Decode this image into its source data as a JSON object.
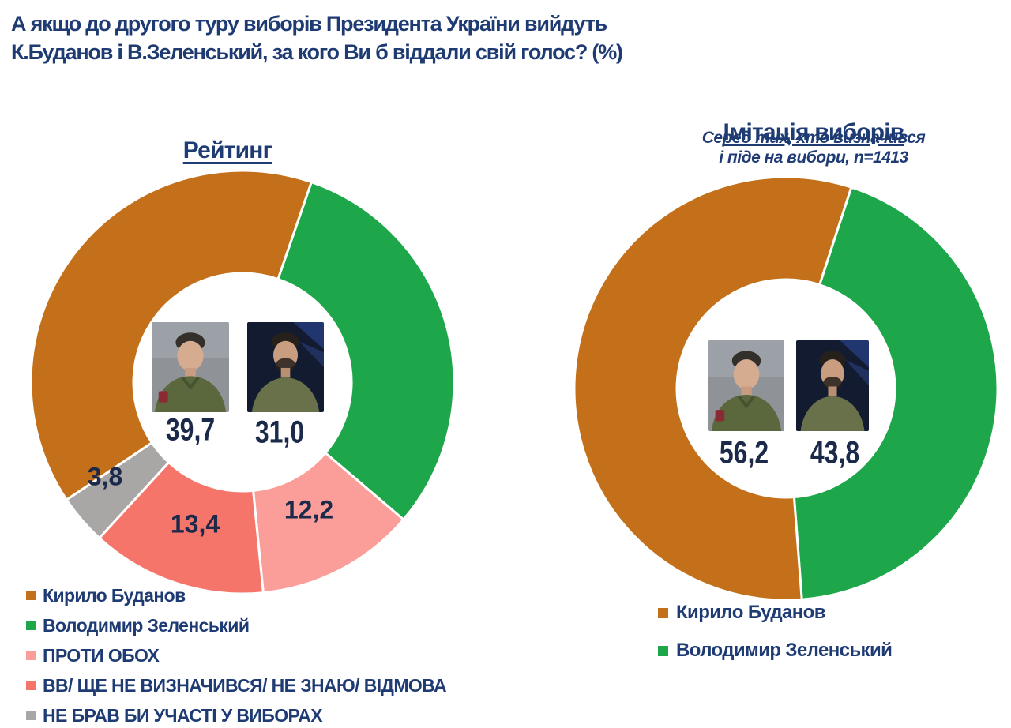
{
  "header": {
    "title_line1": "А якщо до другого туру виборів Президента України вийдуть",
    "title_line2": "К.Буданов і В.Зеленський, за кого Ви б віддали свій голос? (%)"
  },
  "colors": {
    "title_text": "#1F3B73",
    "value_text": "#1B2A4A",
    "background": "#FFFFFF",
    "slice_gap": "#FFFFFF",
    "budanov_orange": "#C4701A",
    "zelensky_green": "#1EA74A",
    "against_both_pink": "#FB9E99",
    "undecided_salmon": "#F5756B",
    "no_vote_gray": "#A9A6A6"
  },
  "chart_data": [
    {
      "id": "rating",
      "type": "donut",
      "title": "Рейтинг",
      "unit": "%",
      "slices_clockwise": [
        {
          "label": "Володимир Зеленський",
          "value": 31.0,
          "display": "31,0",
          "color": "#1EA74A",
          "on_slice_label": false
        },
        {
          "label": "ПРОТИ ОБОХ",
          "value": 12.2,
          "display": "12,2",
          "color": "#FB9E99",
          "on_slice_label": true
        },
        {
          "label": "ВВ/ ЩЕ НЕ ВИЗНАЧИВСЯ/ НЕ ЗНАЮ/ ВІДМОВА",
          "value": 13.4,
          "display": "13,4",
          "color": "#F5756B",
          "on_slice_label": true
        },
        {
          "label": "НЕ БРАВ БИ УЧАСТІ У ВИБОРАХ",
          "value": 3.8,
          "display": "3,8",
          "color": "#A9A6A6",
          "on_slice_label": true
        },
        {
          "label": "Кирило Буданов",
          "value": 39.7,
          "display": "39,7",
          "color": "#C4701A",
          "on_slice_label": false
        }
      ],
      "center_values": [
        {
          "candidate": "Кирило Буданов",
          "value": 39.7,
          "display": "39,7"
        },
        {
          "candidate": "Володимир Зеленський",
          "value": 31.0,
          "display": "31,0"
        }
      ],
      "legend": [
        {
          "label": "Кирило Буданов",
          "color": "#C4701A"
        },
        {
          "label": "Володимир Зеленський",
          "color": "#1EA74A"
        },
        {
          "label": "ПРОТИ ОБОХ",
          "color": "#FB9E99"
        },
        {
          "label": "ВВ/ ЩЕ НЕ ВИЗНАЧИВСЯ/ НЕ ЗНАЮ/ ВІДМОВА",
          "color": "#F5756B"
        },
        {
          "label": "НЕ БРАВ БИ УЧАСТІ У ВИБОРАХ",
          "color": "#A9A6A6"
        }
      ]
    },
    {
      "id": "simulation",
      "type": "donut",
      "title": "Імітація виборів",
      "subtitle_line1": "Серед тих, хто визначився",
      "subtitle_line2": "і піде на вибори, n=1413",
      "sample_n": 1413,
      "unit": "%",
      "slices_clockwise": [
        {
          "label": "Володимир Зеленський",
          "value": 43.8,
          "display": "43,8",
          "color": "#1EA74A",
          "on_slice_label": false
        },
        {
          "label": "Кирило Буданов",
          "value": 56.2,
          "display": "56,2",
          "color": "#C4701A",
          "on_slice_label": false
        }
      ],
      "center_values": [
        {
          "candidate": "Кирило Буданов",
          "value": 56.2,
          "display": "56,2"
        },
        {
          "candidate": "Володимир Зеленський",
          "value": 43.8,
          "display": "43,8"
        }
      ],
      "legend": [
        {
          "label": "Кирило Буданов",
          "color": "#C4701A"
        },
        {
          "label": "Володимир Зеленський",
          "color": "#1EA74A"
        }
      ]
    }
  ]
}
